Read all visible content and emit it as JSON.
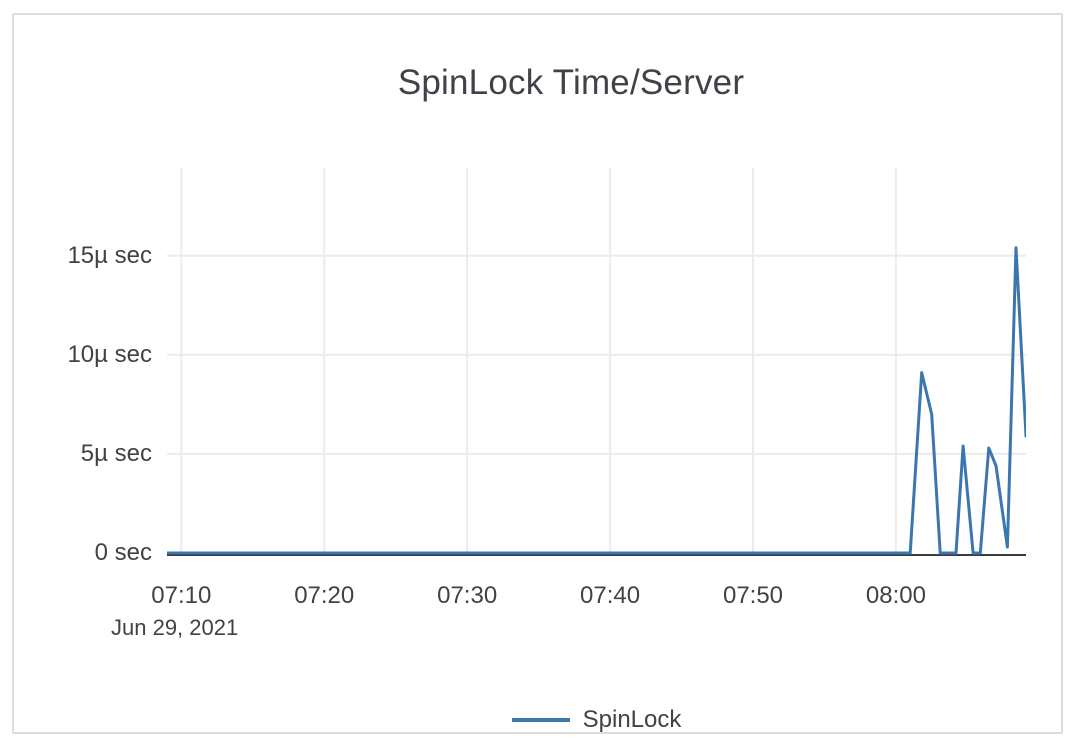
{
  "card": {
    "background": "#ffffff",
    "border_color": "#dcdcdc"
  },
  "colors": {
    "series_blue": "#3b76af",
    "grid": "#ececec",
    "axis": "#3a3b3d",
    "text": "#3f4347"
  },
  "chart_data": {
    "type": "line",
    "title": "SpinLock Time/Server",
    "x_axis": {
      "date_label": "Jun 29, 2021",
      "unit": "time (HH:MM)",
      "domain_minutes_after_07_00": [
        9,
        69.1
      ],
      "ticks": [
        {
          "label": "07:10",
          "minute": 10
        },
        {
          "label": "07:20",
          "minute": 20
        },
        {
          "label": "07:30",
          "minute": 30
        },
        {
          "label": "07:40",
          "minute": 40
        },
        {
          "label": "07:50",
          "minute": 50
        },
        {
          "label": "08:00",
          "minute": 60
        }
      ],
      "grid": true
    },
    "y_axis": {
      "unit": "microseconds",
      "domain": [
        0,
        19.4
      ],
      "ticks": [
        {
          "label": "0 sec",
          "value": 0
        },
        {
          "label": "5µ sec",
          "value": 5
        },
        {
          "label": "10µ sec",
          "value": 10
        },
        {
          "label": "15µ sec",
          "value": 15
        }
      ],
      "grid": true
    },
    "legend": {
      "position": "bottom"
    },
    "series": [
      {
        "name": "SpinLock",
        "color": "#3b76af",
        "points_minute_value": [
          [
            9,
            0
          ],
          [
            10,
            0
          ],
          [
            15,
            0
          ],
          [
            20,
            0
          ],
          [
            25,
            0
          ],
          [
            30,
            0
          ],
          [
            35,
            0
          ],
          [
            40,
            0
          ],
          [
            45,
            0
          ],
          [
            50,
            0
          ],
          [
            55,
            0
          ],
          [
            60,
            0
          ],
          [
            61,
            0
          ],
          [
            61.8,
            9.1
          ],
          [
            62.5,
            7.0
          ],
          [
            63.1,
            0
          ],
          [
            64.2,
            0
          ],
          [
            64.7,
            5.4
          ],
          [
            65.4,
            0
          ],
          [
            65.9,
            0
          ],
          [
            66.5,
            5.3
          ],
          [
            67.0,
            4.4
          ],
          [
            67.8,
            0.3
          ],
          [
            68.4,
            15.4
          ],
          [
            69.1,
            5.9
          ]
        ]
      }
    ]
  }
}
